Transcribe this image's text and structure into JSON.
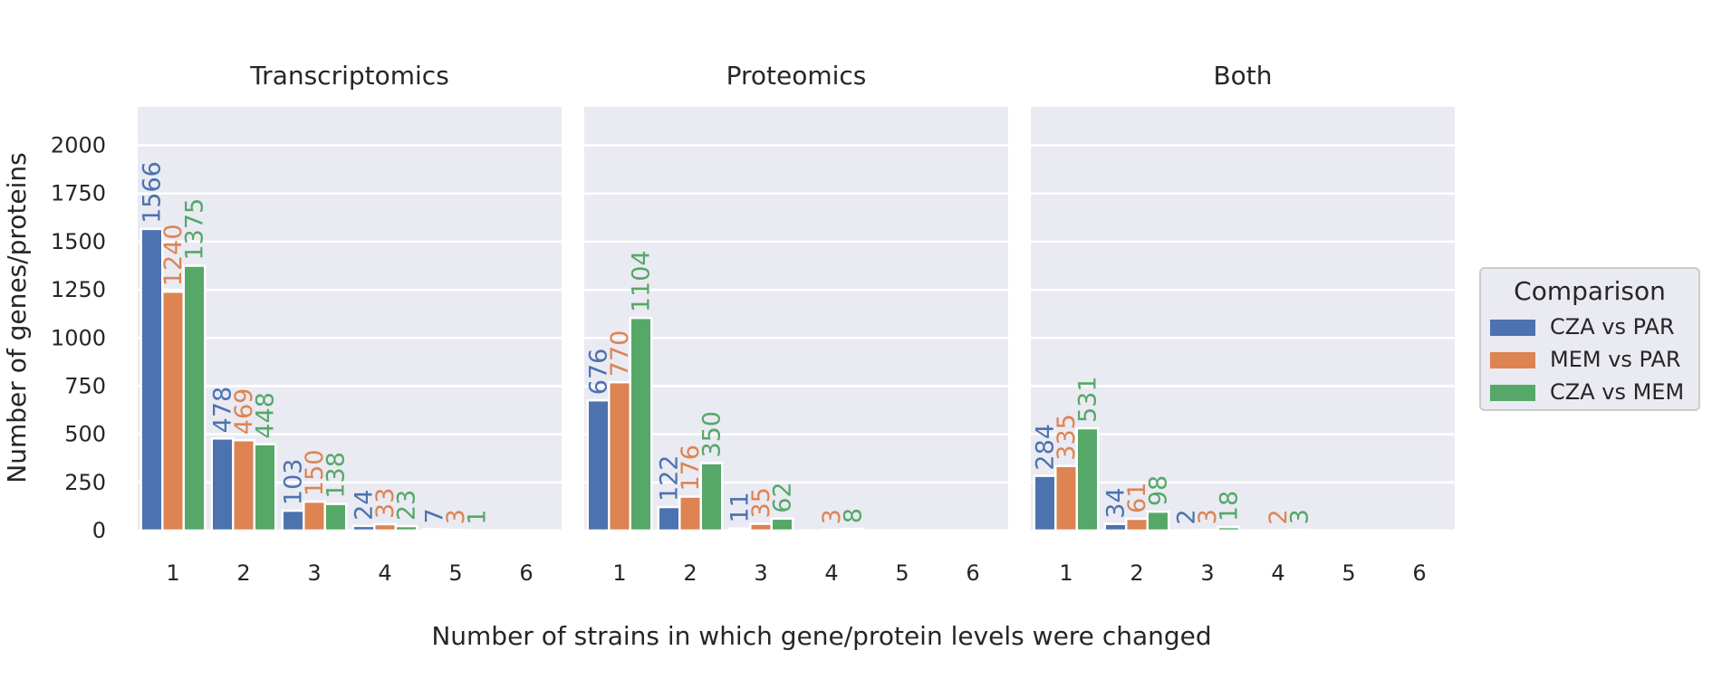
{
  "chart_data": {
    "type": "bar",
    "facets": [
      "Transcriptomics",
      "Proteomics",
      "Both"
    ],
    "categories": [
      "1",
      "2",
      "3",
      "4",
      "5",
      "6"
    ],
    "xlabel": "Number of strains in which gene/protein levels were changed",
    "ylabel": "Number of genes/proteins",
    "ylim": [
      0,
      2200
    ],
    "yticks": [
      0,
      250,
      500,
      750,
      1000,
      1250,
      1500,
      1750,
      2000
    ],
    "grid": true,
    "legend": {
      "title": "Comparison",
      "placement": "right",
      "entries": [
        "CZA vs PAR",
        "MEM vs PAR",
        "CZA vs MEM"
      ]
    },
    "colors": [
      "#4c72b0",
      "#dd8452",
      "#55a868"
    ],
    "panels": [
      {
        "facet": "Transcriptomics",
        "series": [
          {
            "name": "CZA vs PAR",
            "values": [
              1566,
              478,
              103,
              24,
              7,
              0
            ]
          },
          {
            "name": "MEM vs PAR",
            "values": [
              1240,
              469,
              150,
              33,
              3,
              0
            ]
          },
          {
            "name": "CZA vs MEM",
            "values": [
              1375,
              448,
              138,
              23,
              1,
              0
            ]
          }
        ]
      },
      {
        "facet": "Proteomics",
        "series": [
          {
            "name": "CZA vs PAR",
            "values": [
              676,
              122,
              11,
              0,
              0,
              0
            ]
          },
          {
            "name": "MEM vs PAR",
            "values": [
              770,
              176,
              35,
              3,
              0,
              0
            ]
          },
          {
            "name": "CZA vs MEM",
            "values": [
              1104,
              350,
              62,
              8,
              0,
              0
            ]
          }
        ]
      },
      {
        "facet": "Both",
        "series": [
          {
            "name": "CZA vs PAR",
            "values": [
              284,
              34,
              2,
              0,
              0,
              0
            ]
          },
          {
            "name": "MEM vs PAR",
            "values": [
              335,
              61,
              3,
              2,
              0,
              0
            ]
          },
          {
            "name": "CZA vs MEM",
            "values": [
              531,
              98,
              18,
              3,
              0,
              0
            ]
          }
        ]
      }
    ]
  }
}
